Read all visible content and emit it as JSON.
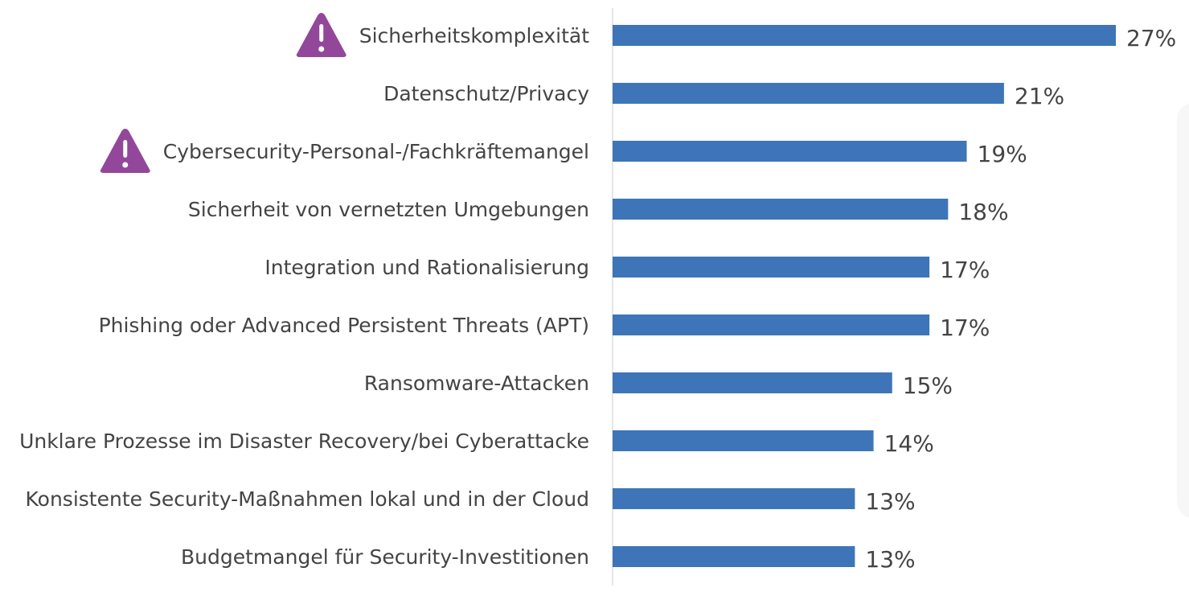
{
  "chart_data": {
    "type": "bar",
    "orientation": "horizontal",
    "categories": [
      "Sicherheitskomplexität",
      "Datenschutz/Privacy",
      "Cybersecurity-Personal-/Fachkräftemangel",
      "Sicherheit von vernetzten Umgebungen",
      "Integration und Rationalisierung",
      "Phishing oder Advanced Persistent Threats (APT)",
      "Ransomware-Attacken",
      "Unklare Prozesse im Disaster Recovery/bei Cyberattacke",
      "Konsistente Security-Maßnahmen lokal und in der Cloud",
      "Budgetmangel für Security-Investitionen"
    ],
    "values": [
      27,
      21,
      19,
      18,
      17,
      17,
      15,
      14,
      13,
      13
    ],
    "value_labels": [
      "27%",
      "21%",
      "19%",
      "18%",
      "17%",
      "17%",
      "15%",
      "14%",
      "13%",
      "13%"
    ],
    "warning_icon_categories": [
      0,
      2
    ],
    "xlim": [
      0,
      27
    ],
    "grid": false,
    "legend": "none",
    "title": "",
    "xlabel": "",
    "ylabel": "",
    "colors": {
      "bar": "#3d75b8",
      "warning_icon": "#93479a",
      "text": "#444444",
      "axis": "#dddddd"
    }
  }
}
